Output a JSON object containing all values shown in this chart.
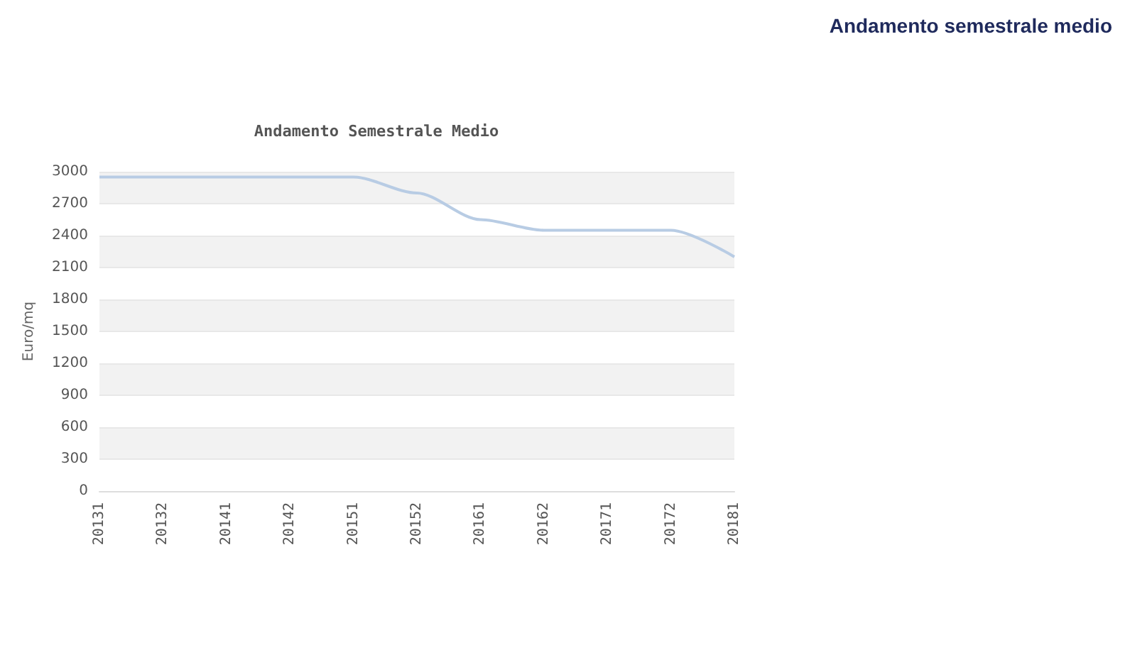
{
  "chart_data": {
    "type": "line",
    "title": "Andamento Semestrale Medio",
    "subtitle": "Andamento semestrale medio",
    "ylabel": "Euro/mq",
    "categories": [
      "20131",
      "20132",
      "20141",
      "20142",
      "20151",
      "20152",
      "20161",
      "20162",
      "20171",
      "20172",
      "20181"
    ],
    "series": [
      {
        "color": "#b8cce4",
        "values": [
          2950,
          2950,
          2950,
          2950,
          2950,
          2800,
          2550,
          2450,
          2450,
          2450,
          2200
        ]
      }
    ],
    "ylim": [
      0,
      3000
    ],
    "yticks": [
      0,
      300,
      600,
      900,
      1200,
      1500,
      1800,
      2100,
      2400,
      2700,
      3000
    ],
    "grid": "y",
    "marker": "none",
    "line_style": "solid"
  }
}
